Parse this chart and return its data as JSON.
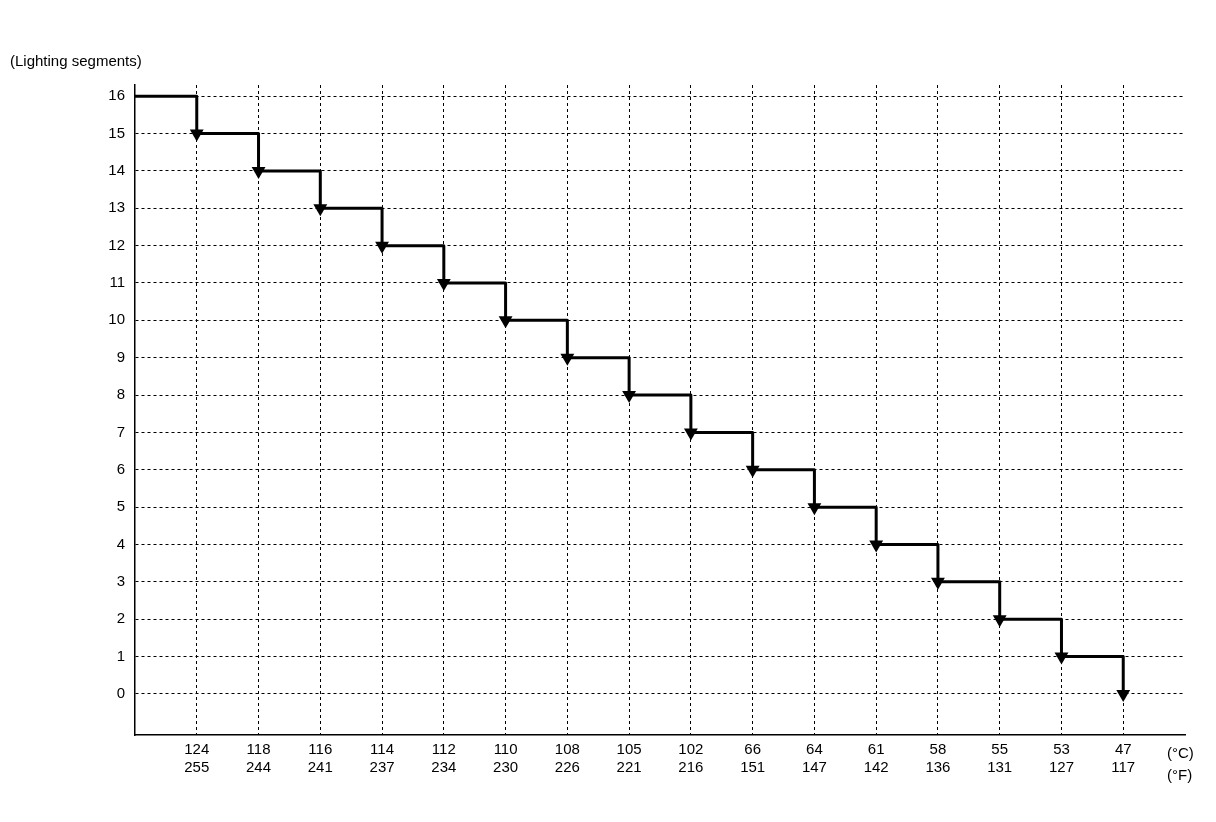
{
  "chart_data": {
    "type": "step",
    "ylabel": "(Lighting segments)",
    "xlabel": "(°C)\n(°F)",
    "categories": [
      null,
      "124\n255",
      "118\n244",
      "116\n241",
      "114\n237",
      "112\n234",
      "110\n230",
      "108\n226",
      "105\n221",
      "102\n216",
      "66\n151",
      "64\n147",
      "61\n142",
      "58\n136",
      "55\n131",
      "53\n127",
      "47\n117"
    ],
    "series": [
      {
        "color": "#000000",
        "values": [
          16,
          15,
          14,
          13,
          12,
          11,
          10,
          9,
          8,
          7,
          6,
          5,
          4,
          3,
          2,
          1,
          0
        ]
      }
    ],
    "ylim": [
      -1.1,
      16.3
    ],
    "yticks": [
      0,
      1,
      2,
      3,
      4,
      5,
      6,
      7,
      8,
      9,
      10,
      11,
      12,
      13,
      14,
      15,
      16
    ],
    "grid": true,
    "marker": "triangle",
    "line_style": "solid",
    "legend": false
  }
}
